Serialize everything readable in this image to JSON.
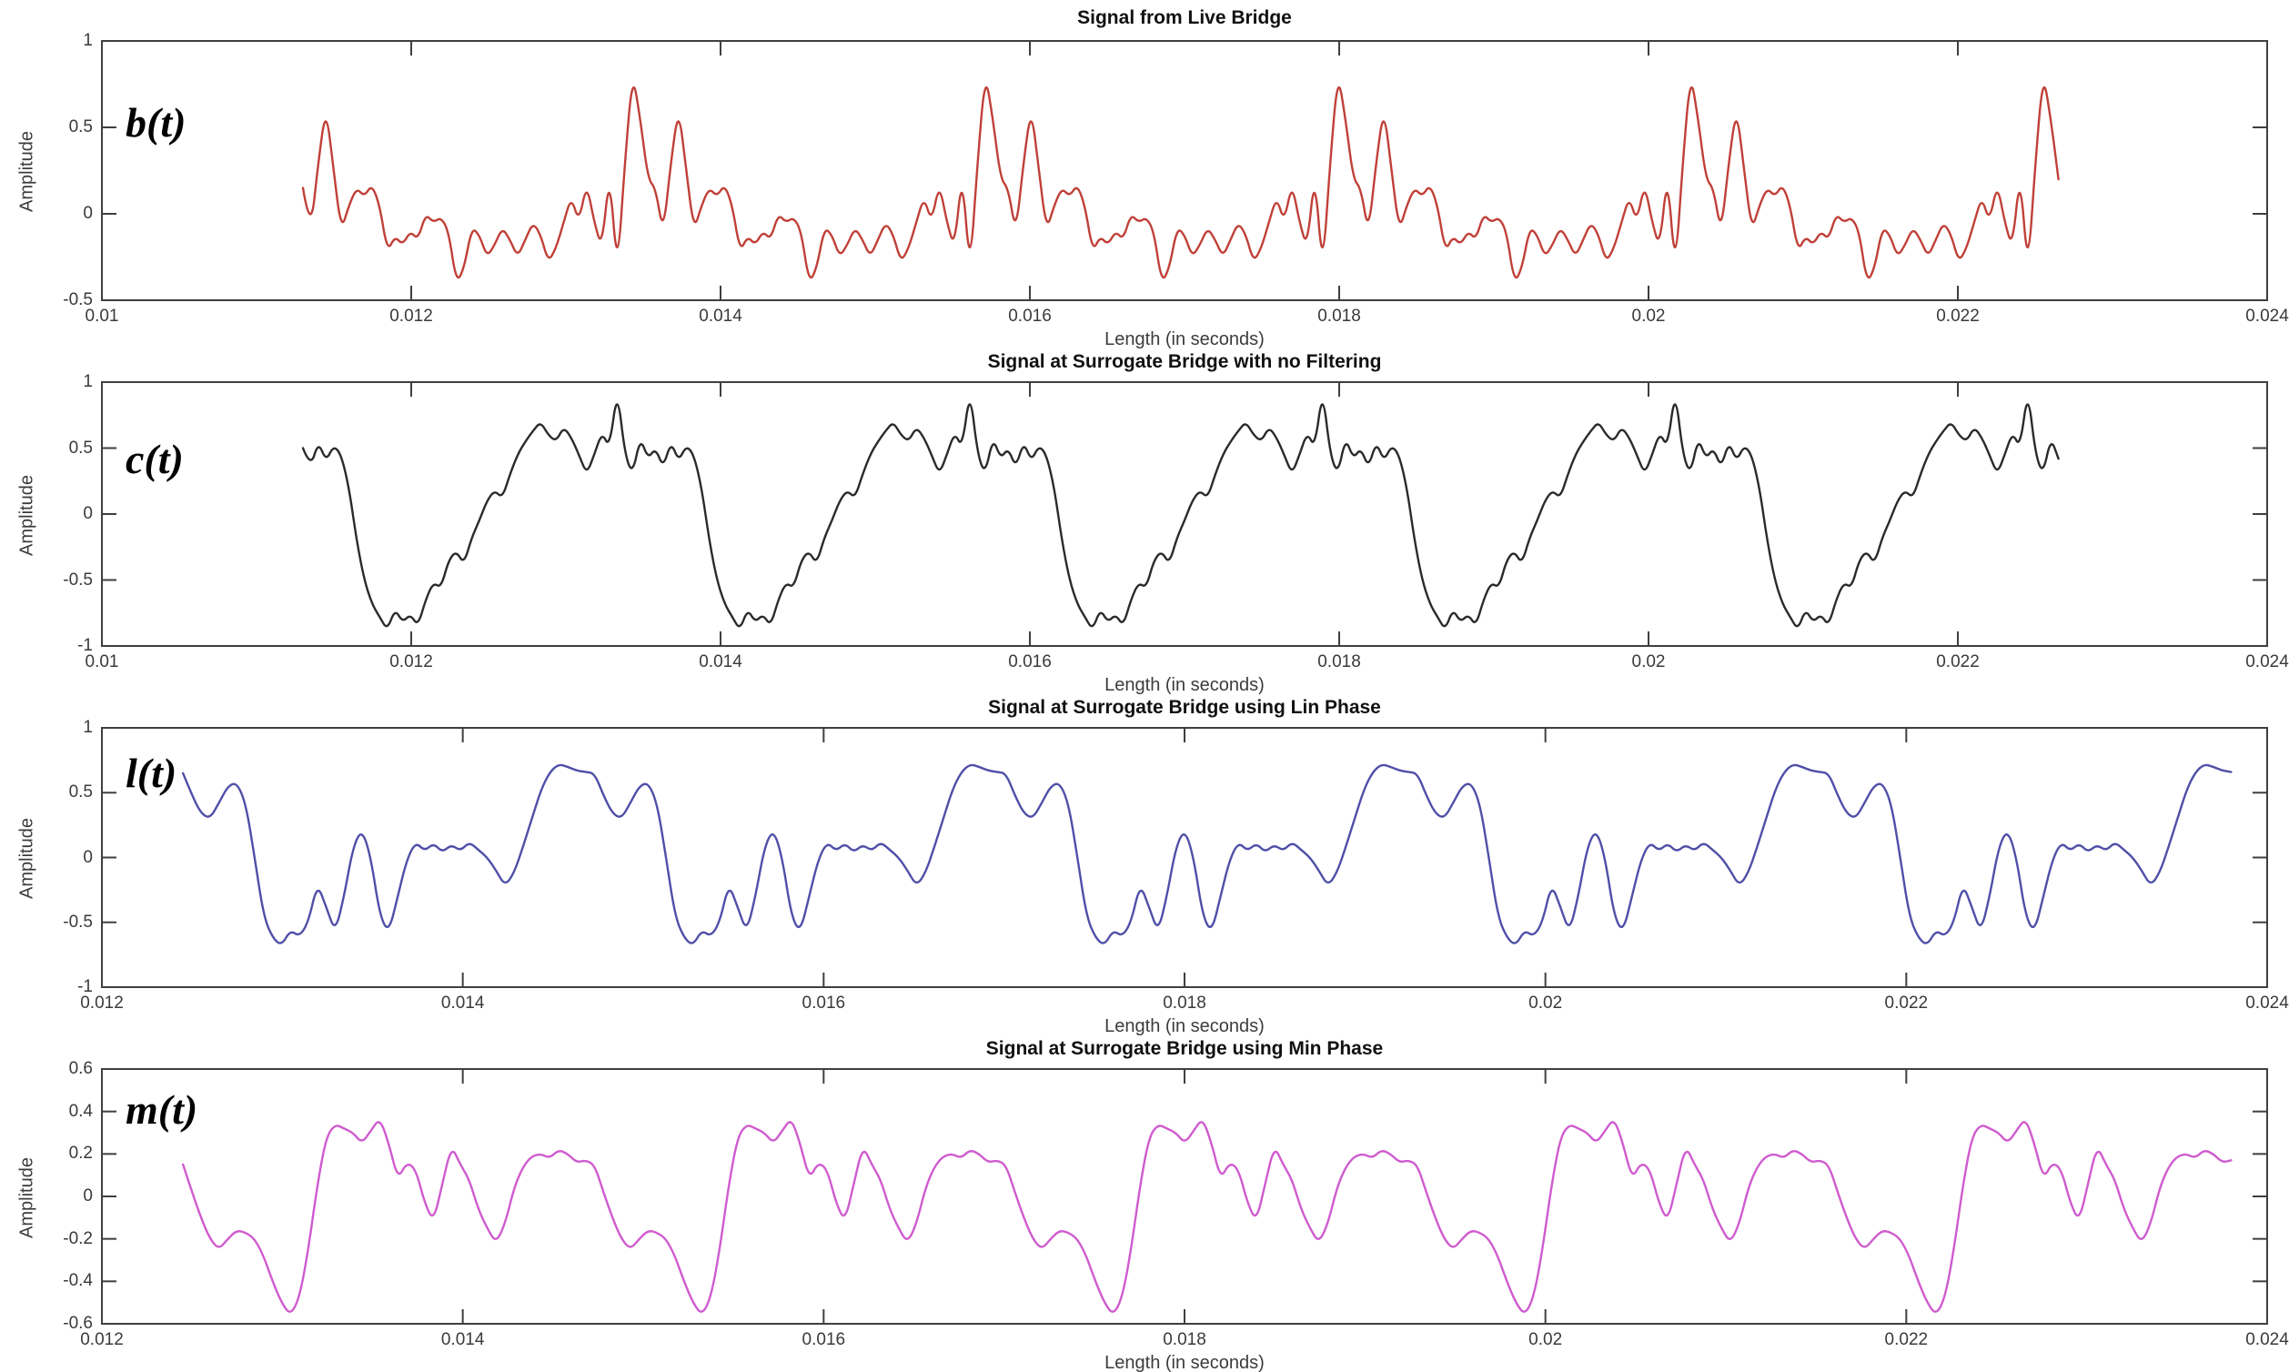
{
  "figure": {
    "background": "#ffffff",
    "axis_color": "#3f3f3f",
    "tick_label_color": "#3a3a3a",
    "title_color": "#111111"
  },
  "chart_data": [
    {
      "type": "line",
      "title": "Signal from Live Bridge",
      "xlabel": "Length (in seconds)",
      "ylabel": "Amplitude",
      "signal_label": "b(t)",
      "series_name": "b(t)",
      "line_color": "#c04038",
      "xlim": [
        0.01,
        0.024
      ],
      "ylim": [
        -0.5,
        1
      ],
      "xtick_labels": [
        "0.01",
        "0.012",
        "0.014",
        "0.016",
        "0.018",
        "0.02",
        "0.022",
        "0.024"
      ],
      "ytick_labels": [
        "1",
        "0.5",
        "0",
        "-0.5"
      ],
      "grid": false,
      "legend": "none",
      "signal": {
        "t_start": 0.0113,
        "period_seconds": 0.00228,
        "cycles": 5,
        "period_values": [
          0.15,
          -0.12,
          0.3,
          0.62,
          0.25,
          -0.1,
          0.05,
          0.15,
          0.1,
          0.17,
          0.05,
          -0.22,
          -0.13,
          -0.18,
          -0.1,
          -0.15,
          0.0,
          -0.05,
          -0.02,
          -0.1,
          -0.4,
          -0.32,
          -0.08,
          -0.12,
          -0.25,
          -0.18,
          -0.08,
          -0.15,
          -0.25,
          -0.15,
          -0.05,
          -0.12,
          -0.28,
          -0.2,
          -0.05,
          0.1,
          -0.05,
          0.18,
          -0.05,
          -0.2,
          0.25,
          -0.35,
          0.3,
          0.82,
          0.55,
          0.2
        ]
      }
    },
    {
      "type": "line",
      "title": "Signal at Surrogate Bridge with no Filtering",
      "xlabel": "Length (in seconds)",
      "ylabel": "Amplitude",
      "signal_label": "c(t)",
      "series_name": "c(t)",
      "line_color": "#2a2a2a",
      "xlim": [
        0.01,
        0.024
      ],
      "ylim": [
        -1,
        1
      ],
      "xtick_labels": [
        "0.01",
        "0.012",
        "0.014",
        "0.016",
        "0.018",
        "0.02",
        "0.022",
        "0.024"
      ],
      "ytick_labels": [
        "1",
        "0.5",
        "0",
        "-0.5",
        "-1"
      ],
      "grid": false,
      "legend": "none",
      "signal": {
        "t_start": 0.0113,
        "period_seconds": 0.00228,
        "cycles": 5,
        "period_values": [
          0.5,
          0.35,
          0.55,
          0.4,
          0.52,
          0.45,
          0.2,
          -0.2,
          -0.5,
          -0.68,
          -0.78,
          -0.88,
          -0.72,
          -0.82,
          -0.76,
          -0.85,
          -0.65,
          -0.52,
          -0.56,
          -0.35,
          -0.28,
          -0.38,
          -0.18,
          -0.05,
          0.1,
          0.18,
          0.12,
          0.3,
          0.45,
          0.55,
          0.63,
          0.7,
          0.6,
          0.55,
          0.66,
          0.58,
          0.45,
          0.3,
          0.45,
          0.62,
          0.5,
          0.95,
          0.45,
          0.3,
          0.58,
          0.42
        ]
      }
    },
    {
      "type": "line",
      "title": "Signal at Surrogate Bridge using Lin Phase",
      "xlabel": "Length (in seconds)",
      "ylabel": "Amplitude",
      "signal_label": "l(t)",
      "series_name": "l(t)",
      "line_color": "#4f4fa8",
      "xlim": [
        0.012,
        0.024
      ],
      "ylim": [
        -1,
        1
      ],
      "xtick_labels": [
        "0.012",
        "0.014",
        "0.016",
        "0.018",
        "0.02",
        "0.022",
        "0.024"
      ],
      "ytick_labels": [
        "1",
        "0.5",
        "0",
        "-0.5",
        "-1"
      ],
      "grid": false,
      "legend": "none",
      "signal": {
        "t_start": 0.01245,
        "period_seconds": 0.00228,
        "cycles": 5,
        "period_values": [
          0.65,
          0.48,
          0.34,
          0.3,
          0.42,
          0.55,
          0.58,
          0.42,
          0.0,
          -0.45,
          -0.62,
          -0.68,
          -0.56,
          -0.61,
          -0.5,
          -0.2,
          -0.38,
          -0.58,
          -0.3,
          0.08,
          0.22,
          0.0,
          -0.45,
          -0.58,
          -0.3,
          -0.02,
          0.12,
          0.05,
          0.11,
          0.04,
          0.1,
          0.05,
          0.12,
          0.06,
          0.0,
          -0.1,
          -0.22,
          -0.12,
          0.08,
          0.3,
          0.52,
          0.66,
          0.72,
          0.7,
          0.67,
          0.66
        ]
      }
    },
    {
      "type": "line",
      "title": "Signal at Surrogate Bridge using Min Phase",
      "xlabel": "Length (in seconds)",
      "ylabel": "Amplitude",
      "signal_label": "m(t)",
      "series_name": "m(t)",
      "line_color": "#cf5bce",
      "xlim": [
        0.012,
        0.024
      ],
      "ylim": [
        -0.6,
        0.6
      ],
      "xtick_labels": [
        "0.012",
        "0.014",
        "0.016",
        "0.018",
        "0.02",
        "0.022",
        "0.024"
      ],
      "ytick_labels": [
        "0.6",
        "0.4",
        "0.2",
        "0",
        "-0.2",
        "-0.4",
        "-0.6"
      ],
      "grid": false,
      "legend": "none",
      "signal": {
        "t_start": 0.01245,
        "period_seconds": 0.00228,
        "cycles": 5,
        "period_values": [
          0.15,
          0.02,
          -0.1,
          -0.2,
          -0.25,
          -0.2,
          -0.16,
          -0.17,
          -0.2,
          -0.28,
          -0.4,
          -0.5,
          -0.56,
          -0.48,
          -0.25,
          0.05,
          0.28,
          0.34,
          0.32,
          0.3,
          0.25,
          0.31,
          0.37,
          0.25,
          0.08,
          0.16,
          0.13,
          -0.03,
          -0.12,
          0.06,
          0.24,
          0.15,
          0.08,
          -0.06,
          -0.15,
          -0.22,
          -0.13,
          0.04,
          0.14,
          0.19,
          0.2,
          0.18,
          0.22,
          0.2,
          0.16,
          0.17
        ]
      }
    }
  ]
}
